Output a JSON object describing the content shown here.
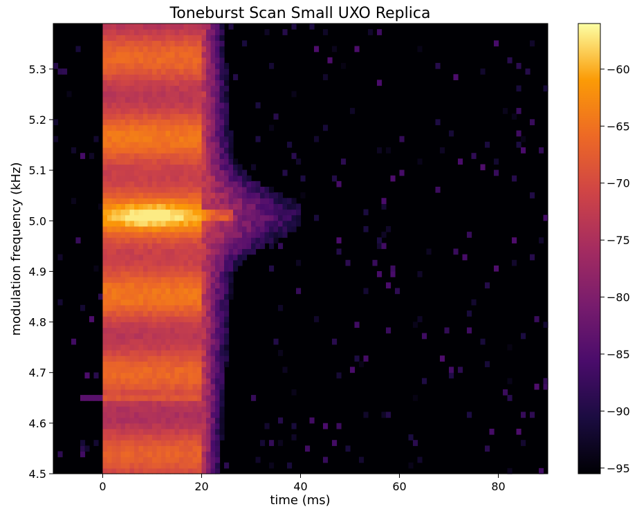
{
  "chart_data": {
    "type": "heatmap",
    "title": "Toneburst Scan Small UXO Replica",
    "xlabel": "time (ms)",
    "ylabel": "modulation frequency (kHz)",
    "xlim": [
      -10,
      90
    ],
    "ylim": [
      4.5,
      5.39
    ],
    "x_ticks": [
      0,
      20,
      40,
      60,
      80
    ],
    "y_ticks": [
      4.5,
      4.6,
      4.7,
      4.8,
      4.9,
      5.0,
      5.1,
      5.2,
      5.3
    ],
    "colorbar": {
      "colormap": "inferno",
      "range": [
        -95.5,
        -56
      ],
      "ticks": [
        -60,
        -65,
        -70,
        -75,
        -80,
        -85,
        -90,
        -95
      ],
      "tick_labels": [
        "−60",
        "−65",
        "−70",
        "−75",
        "−80",
        "−85",
        "−90",
        "−95"
      ]
    },
    "features": {
      "main_burst_time_range_ms": [
        0,
        20
      ],
      "peak_frequency_khz": 5.01,
      "peak_level": -57,
      "burst_body_level": -65,
      "background_level": -95,
      "tail_end_time_ms": 37,
      "sideband_line_frequency_khz": 4.655
    }
  }
}
